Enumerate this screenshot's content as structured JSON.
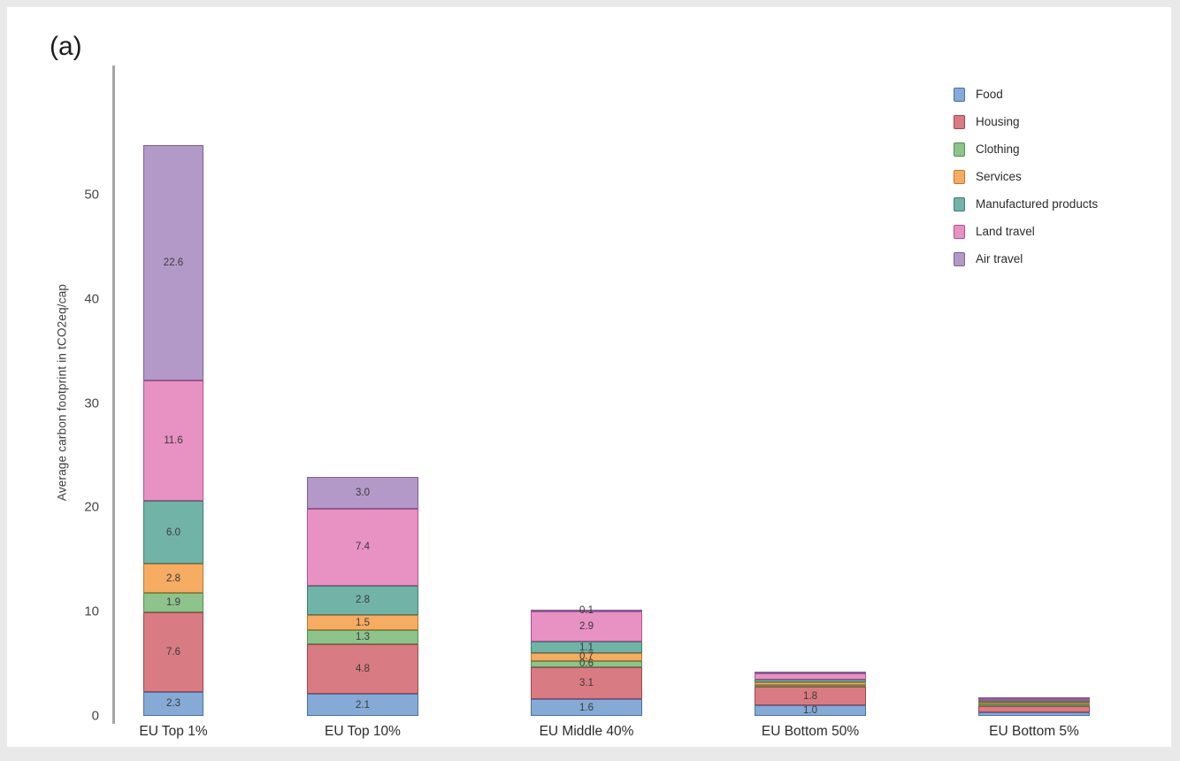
{
  "panel_label": "(a)",
  "chart_data": {
    "type": "bar",
    "stacked": true,
    "variable_bar_width": true,
    "title": "",
    "xlabel": "",
    "ylabel": "Average carbon footprint in tCO2eq/cap",
    "ylim": [
      0,
      57
    ],
    "yticks": [
      0,
      10,
      20,
      30,
      40,
      50
    ],
    "grid": false,
    "legend_position": "top-right",
    "categories": [
      "EU Top 1%",
      "EU Top 10%",
      "EU Middle 40%",
      "EU Bottom 50%",
      "EU Bottom 5%"
    ],
    "totals": [
      54.8,
      22.9,
      10.1,
      4.2,
      1.2
    ],
    "series": [
      {
        "name": "Food",
        "color": "#85aad6",
        "border": "#4c6fa8",
        "values": [
          2.3,
          2.1,
          1.6,
          1.0,
          0.3
        ],
        "labels": [
          "2.3",
          "2.1",
          "1.6",
          "1.0",
          ""
        ]
      },
      {
        "name": "Housing",
        "color": "#d97b82",
        "border": "#a1454e",
        "values": [
          7.6,
          4.8,
          3.1,
          1.8,
          0.6
        ],
        "labels": [
          "7.6",
          "4.8",
          "3.1",
          "1.8",
          ""
        ]
      },
      {
        "name": "Clothing",
        "color": "#8ec38b",
        "border": "#55904f",
        "values": [
          1.9,
          1.3,
          0.6,
          0.2,
          0.03
        ],
        "labels": [
          "1.9",
          "1.3",
          "0.6",
          "",
          ""
        ]
      },
      {
        "name": "Services",
        "color": "#f6ac63",
        "border": "#c07530",
        "values": [
          2.8,
          1.5,
          0.7,
          0.2,
          0.05
        ],
        "labels": [
          "2.8",
          "1.5",
          "0.7",
          "",
          ""
        ]
      },
      {
        "name": "Manufactured products",
        "color": "#72b3a8",
        "border": "#3f7d72",
        "values": [
          6.0,
          2.8,
          1.1,
          0.3,
          0.07
        ],
        "labels": [
          "6.0",
          "2.8",
          "1.1",
          "",
          ""
        ]
      },
      {
        "name": "Land travel",
        "color": "#e891c3",
        "border": "#b5508d",
        "values": [
          11.6,
          7.4,
          2.9,
          0.6,
          0.13
        ],
        "labels": [
          "11.6",
          "7.4",
          "2.9",
          "",
          ""
        ]
      },
      {
        "name": "Air travel",
        "color": "#b399c8",
        "border": "#7d5f96",
        "values": [
          22.6,
          3.0,
          0.1,
          0.1,
          0.02
        ],
        "labels": [
          "22.6",
          "3.0",
          "0.1",
          "",
          ""
        ]
      }
    ]
  }
}
